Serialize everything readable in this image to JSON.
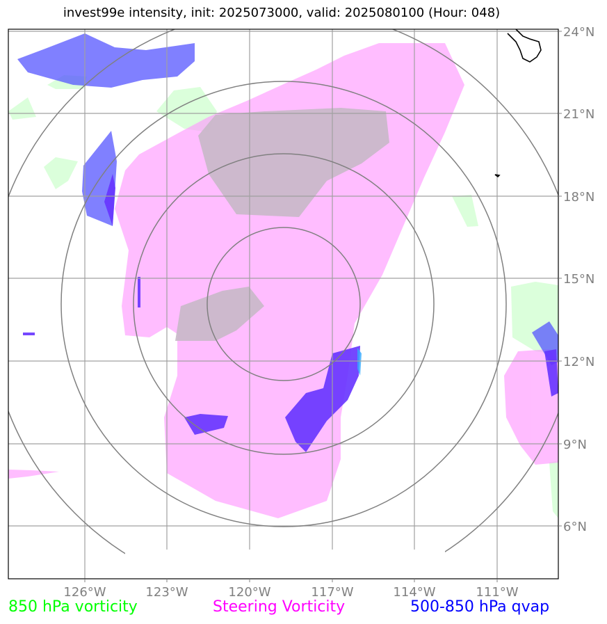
{
  "title": "invest99e intensity, init: 2025073000, valid: 2025080100 (Hour: 048)",
  "colors": {
    "vort850": "#00ff00",
    "steering": "#ff00ff",
    "qvap": "#0000ff",
    "grid": "#808080",
    "coast": "#000000"
  },
  "legend": {
    "vort850": "850 hPa vorticity",
    "steering": "Steering Vorticity",
    "qvap": "500-850 hPa qvap"
  },
  "axes": {
    "lon_ticks": [
      "126°W",
      "123°W",
      "120°W",
      "117°W",
      "114°W",
      "111°W"
    ],
    "lat_ticks": [
      "24°N",
      "21°N",
      "18°N",
      "15°N",
      "12°N",
      "9°N",
      "6°N"
    ]
  }
}
